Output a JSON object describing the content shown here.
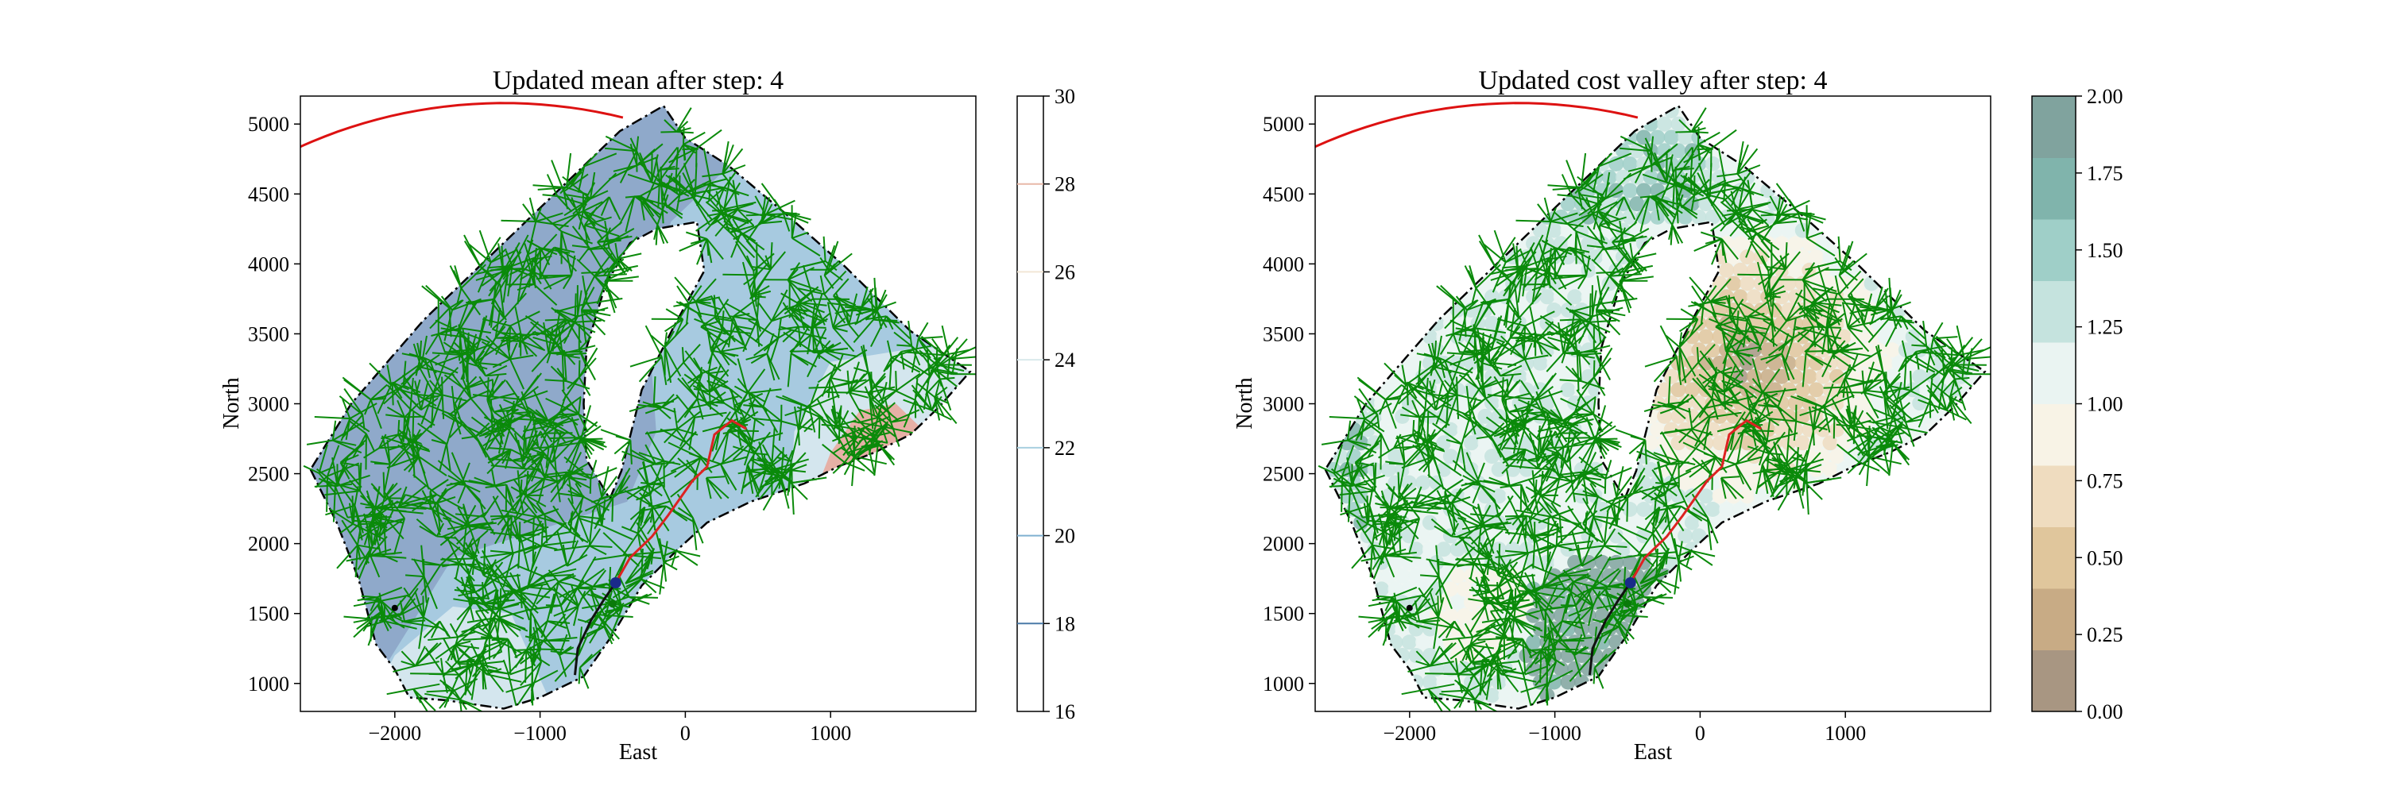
{
  "chart_data": [
    {
      "type": "contour",
      "title": "Updated mean after step: 4",
      "xlabel": "East",
      "ylabel": "North",
      "xlim": [
        -2650,
        2000
      ],
      "ylim": [
        800,
        5200
      ],
      "xticks": [
        -2000,
        -1000,
        0,
        1000
      ],
      "yticks": [
        1000,
        1500,
        2000,
        2500,
        3000,
        3500,
        4000,
        4500,
        5000
      ],
      "colorbar": {
        "kind": "lines",
        "range": [
          16,
          30
        ],
        "ticks": [
          16,
          18,
          20,
          22,
          24,
          26,
          28,
          30
        ],
        "colors": [
          "#3f5e8a",
          "#4a7aa8",
          "#7fb0d0",
          "#a8cfe0",
          "#d9e9ec",
          "#f2e6d6",
          "#e8b8a8",
          "#c8797a"
        ]
      },
      "region_colors": {
        "low": "#8fa9ca",
        "mid": "#a7cae0",
        "high": "#d4e6ee",
        "peak": "#e6b0a6"
      }
    },
    {
      "type": "heatmap",
      "title": "Updated cost valley after step: 4",
      "xlabel": "East",
      "ylabel": "North",
      "xlim": [
        -2650,
        2000
      ],
      "ylim": [
        800,
        5200
      ],
      "xticks": [
        -2000,
        -1000,
        0,
        1000
      ],
      "yticks": [
        1000,
        1500,
        2000,
        2500,
        3000,
        3500,
        4000,
        4500,
        5000
      ],
      "colorbar": {
        "kind": "filled",
        "range": [
          0.0,
          2.0
        ],
        "ticks": [
          "0.00",
          "0.25",
          "0.50",
          "0.75",
          "1.00",
          "1.25",
          "1.50",
          "1.75",
          "2.00"
        ],
        "colors": [
          "#a89682",
          "#c8ab85",
          "#e0c69c",
          "#efdcbf",
          "#f8f3e6",
          "#eaf4f2",
          "#c5e3de",
          "#9fcfc8",
          "#80b4ac",
          "#80a39e"
        ]
      }
    }
  ],
  "overlay": {
    "boundary_color": "#000000",
    "tree_color": "#0a8a0a",
    "budget_arc_color": "#dd1111",
    "path_traveled_color": "#111111",
    "path_planned_color": "#dd2222",
    "current_location_color": "#1a2a8a"
  }
}
